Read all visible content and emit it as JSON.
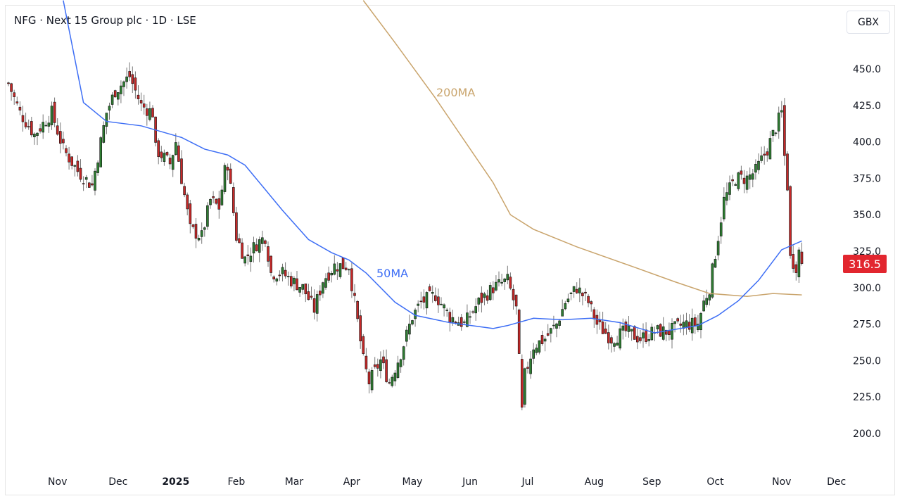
{
  "header": {
    "title": "NFG · Next 15 Group plc · 1D · LSE",
    "currency_button": "GBX"
  },
  "colors": {
    "up": "#2e7d32",
    "down": "#c62828",
    "ma50": "#3d6ef5",
    "ma200": "#c9a46c",
    "last_price_bg": "#e2262f"
  },
  "chart_data": {
    "type": "candlestick",
    "title": "NFG · Next 15 Group plc · 1D · LSE",
    "ylabel": "GBX",
    "ylim": [
      175,
      497
    ],
    "y_ticks": [
      "450.0",
      "425.0",
      "400.0",
      "375.0",
      "350.0",
      "325.0",
      "300.0",
      "275.0",
      "250.0",
      "225.0",
      "200.0"
    ],
    "x_ticks": [
      {
        "label": "Nov",
        "day": 17
      },
      {
        "label": "Dec",
        "day": 38
      },
      {
        "label": "2025",
        "day": 58,
        "bold": true
      },
      {
        "label": "Feb",
        "day": 79
      },
      {
        "label": "Mar",
        "day": 99
      },
      {
        "label": "Apr",
        "day": 119
      },
      {
        "label": "May",
        "day": 140
      },
      {
        "label": "Jun",
        "day": 160
      },
      {
        "label": "Jul",
        "day": 180
      },
      {
        "label": "Aug",
        "day": 203
      },
      {
        "label": "Sep",
        "day": 223
      },
      {
        "label": "Oct",
        "day": 245
      },
      {
        "label": "Nov",
        "day": 268
      },
      {
        "label": "Dec",
        "day": 287
      }
    ],
    "approx_close_anchors": [
      [
        0,
        440
      ],
      [
        4,
        420
      ],
      [
        9,
        405
      ],
      [
        15,
        420
      ],
      [
        19,
        395
      ],
      [
        24,
        380
      ],
      [
        29,
        370
      ],
      [
        34,
        420
      ],
      [
        37,
        435
      ],
      [
        42,
        445
      ],
      [
        46,
        425
      ],
      [
        50,
        420
      ],
      [
        51,
        395
      ],
      [
        56,
        385
      ],
      [
        58,
        400
      ],
      [
        60,
        375
      ],
      [
        63,
        340
      ],
      [
        67,
        335
      ],
      [
        70,
        360
      ],
      [
        73,
        355
      ],
      [
        75,
        380
      ],
      [
        76,
        385
      ],
      [
        79,
        335
      ],
      [
        82,
        320
      ],
      [
        86,
        330
      ],
      [
        89,
        335
      ],
      [
        91,
        310
      ],
      [
        95,
        310
      ],
      [
        98,
        305
      ],
      [
        102,
        300
      ],
      [
        106,
        285
      ],
      [
        109,
        305
      ],
      [
        113,
        315
      ],
      [
        118,
        315
      ],
      [
        120,
        290
      ],
      [
        123,
        250
      ],
      [
        125,
        235
      ],
      [
        129,
        250
      ],
      [
        132,
        235
      ],
      [
        136,
        255
      ],
      [
        140,
        280
      ],
      [
        143,
        290
      ],
      [
        148,
        295
      ],
      [
        153,
        280
      ],
      [
        158,
        275
      ],
      [
        163,
        290
      ],
      [
        168,
        300
      ],
      [
        173,
        305
      ],
      [
        176,
        285
      ],
      [
        178,
        215
      ],
      [
        179,
        240
      ],
      [
        182,
        260
      ],
      [
        186,
        265
      ],
      [
        190,
        275
      ],
      [
        193,
        290
      ],
      [
        197,
        300
      ],
      [
        201,
        290
      ],
      [
        204,
        275
      ],
      [
        209,
        265
      ],
      [
        214,
        270
      ],
      [
        219,
        265
      ],
      [
        224,
        270
      ],
      [
        229,
        270
      ],
      [
        234,
        275
      ],
      [
        239,
        275
      ],
      [
        241,
        290
      ],
      [
        243,
        300
      ],
      [
        246,
        335
      ],
      [
        248,
        360
      ],
      [
        252,
        375
      ],
      [
        256,
        375
      ],
      [
        259,
        380
      ],
      [
        263,
        395
      ],
      [
        265,
        405
      ],
      [
        268,
        420
      ],
      [
        269,
        390
      ],
      [
        270,
        370
      ],
      [
        271,
        320
      ],
      [
        273,
        315
      ],
      [
        274,
        325
      ],
      [
        275,
        316.5
      ]
    ],
    "ma50": {
      "label": "50MA",
      "points": [
        [
          19,
          497
        ],
        [
          26,
          427
        ],
        [
          34,
          414
        ],
        [
          46,
          411
        ],
        [
          60,
          403
        ],
        [
          68,
          395
        ],
        [
          76,
          391
        ],
        [
          82,
          384
        ],
        [
          95,
          353
        ],
        [
          104,
          333
        ],
        [
          112,
          324
        ],
        [
          118,
          319
        ],
        [
          124,
          310
        ],
        [
          134,
          290
        ],
        [
          141,
          281
        ],
        [
          153,
          276
        ],
        [
          168,
          272
        ],
        [
          173,
          274
        ],
        [
          182,
          279
        ],
        [
          192,
          278
        ],
        [
          202,
          279
        ],
        [
          212,
          276
        ],
        [
          224,
          269
        ],
        [
          239,
          274
        ],
        [
          246,
          281
        ],
        [
          253,
          291
        ],
        [
          260,
          305
        ],
        [
          268,
          326
        ],
        [
          275,
          332
        ]
      ]
    },
    "ma200": {
      "label": "200MA",
      "points": [
        [
          123,
          497
        ],
        [
          134,
          468
        ],
        [
          148,
          430
        ],
        [
          158,
          401
        ],
        [
          168,
          372
        ],
        [
          174,
          350
        ],
        [
          182,
          340
        ],
        [
          197,
          328
        ],
        [
          217,
          314
        ],
        [
          231,
          304
        ],
        [
          243,
          296
        ],
        [
          256,
          294
        ],
        [
          265,
          296
        ],
        [
          275,
          295
        ]
      ]
    },
    "last_price": "316.5"
  }
}
